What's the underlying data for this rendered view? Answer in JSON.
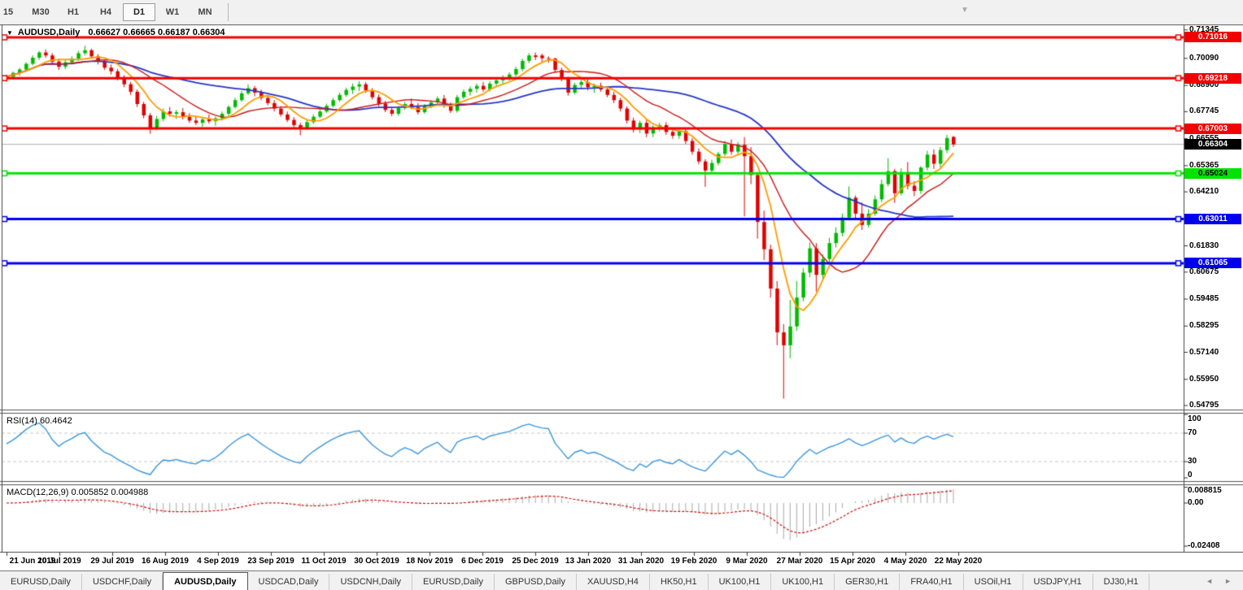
{
  "toolbar": {
    "periods": [
      "15",
      "M30",
      "H1",
      "H4",
      "D1",
      "W1",
      "MN"
    ],
    "active_period": "D1",
    "scroll_to_end_marker": "▼"
  },
  "chart_header": {
    "collapse_icon": "▼",
    "title": "AUDUSD,Daily",
    "ohlc": "0.66627 0.66665 0.66187 0.66304"
  },
  "rsi_panel": {
    "label": "RSI(14) 60.4642"
  },
  "macd_panel": {
    "label": "MACD(12,26,9) 0.005852 0.004988"
  },
  "tabs": {
    "active": "AUDUSD,Daily",
    "scroll_left": "◄",
    "scroll_right": "►",
    "items": [
      "EURUSD,Daily",
      "USDCHF,Daily",
      "AUDUSD,Daily",
      "USDCAD,Daily",
      "USDCNH,Daily",
      "EURUSD,Daily",
      "GBPUSD,Daily",
      "XAUUSD,H4",
      "HK50,H1",
      "UK100,H1",
      "UK100,H1",
      "GER30,H1",
      "FRA40,H1",
      "USOil,H1",
      "USDJPY,H1",
      "DJ30,H1"
    ]
  },
  "chart_data": {
    "type": "candlestick",
    "symbol": "AUDUSD",
    "timeframe": "Daily",
    "last_ohlc": {
      "open": 0.66627,
      "high": 0.66665,
      "low": 0.66187,
      "close": 0.66304
    },
    "current_price": {
      "value": 0.66304,
      "label": "0.66304",
      "line_color": "#b2b2b2",
      "tag_bg": "#000000",
      "tag_text": "#ffffff"
    },
    "ylim": [
      0.5465,
      0.7153
    ],
    "y_ticks": [
      "0.71345",
      "0.70090",
      "0.68900",
      "0.67745",
      "0.66555",
      "0.65365",
      "0.64210",
      "0.63020",
      "0.61830",
      "0.60675",
      "0.59485",
      "0.58295",
      "0.57140",
      "0.55950",
      "0.54795"
    ],
    "x_labels": [
      "21 Jun 2019",
      "10 Jul 2019",
      "29 Jul 2019",
      "16 Aug 2019",
      "4 Sep 2019",
      "23 Sep 2019",
      "11 Oct 2019",
      "30 Oct 2019",
      "18 Nov 2019",
      "6 Dec 2019",
      "25 Dec 2019",
      "13 Jan 2020",
      "31 Jan 2020",
      "19 Feb 2020",
      "9 Mar 2020",
      "27 Mar 2020",
      "15 Apr 2020",
      "4 May 2020",
      "22 May 2020"
    ],
    "grid": false,
    "colors": {
      "bull": "#00bb00",
      "bear": "#e00000",
      "background": "#ffffff",
      "axis_text": "#000000"
    },
    "horizontal_lines": [
      {
        "price": 0.71016,
        "label": "0.71016",
        "color": "#f40000",
        "tag_text": "#ffffff",
        "role": "resistance"
      },
      {
        "price": 0.69218,
        "label": "0.69218",
        "color": "#f40000",
        "tag_text": "#ffffff",
        "role": "resistance"
      },
      {
        "price": 0.67003,
        "label": "0.67003",
        "color": "#f40000",
        "tag_text": "#ffffff",
        "role": "resistance"
      },
      {
        "price": 0.65024,
        "label": "0.65024",
        "color": "#00e400",
        "tag_text": "#000000",
        "role": "support"
      },
      {
        "price": 0.63011,
        "label": "0.63011",
        "color": "#0000f0",
        "tag_text": "#ffffff",
        "role": "support"
      },
      {
        "price": 0.61065,
        "label": "0.61065",
        "color": "#0000f0",
        "tag_text": "#ffffff",
        "role": "support"
      }
    ],
    "moving_averages": [
      {
        "name": "fast",
        "color": "#ff9c00",
        "period_candles": 6,
        "width": 1.8
      },
      {
        "name": "medium",
        "color": "#cc1616",
        "period_candles": 14,
        "width": 1.4
      },
      {
        "name": "slow",
        "color": "#2336c8",
        "period_candles": 34,
        "width": 1.8
      }
    ],
    "indicators": [
      {
        "name": "RSI",
        "params": "14",
        "value": 60.4642,
        "range": [
          0,
          100
        ],
        "levels": [
          70,
          30
        ],
        "y_ticks": [
          "100",
          "70",
          "30",
          "0"
        ],
        "color": "#3a96dd",
        "period_candles": 9
      },
      {
        "name": "MACD",
        "params": "12,26,9",
        "value": 0.005852,
        "signal": 0.004988,
        "y_ticks": [
          "0.008815",
          "0.00",
          "-0.02408"
        ],
        "y_tick_values": [
          0.008815,
          0.0,
          -0.02408
        ],
        "histogram_color": "#a9a9a9",
        "signal_color": "#cc1111",
        "periods_candles": [
          8,
          16,
          6
        ]
      }
    ],
    "candles": [
      [
        0.6922,
        0.6938,
        0.6905,
        0.6928
      ],
      [
        0.6928,
        0.6952,
        0.6915,
        0.6945
      ],
      [
        0.6945,
        0.6968,
        0.6932,
        0.696
      ],
      [
        0.696,
        0.6992,
        0.695,
        0.6985
      ],
      [
        0.6985,
        0.7022,
        0.6978,
        0.7012
      ],
      [
        0.7012,
        0.7042,
        0.7002,
        0.7035
      ],
      [
        0.7035,
        0.7048,
        0.7012,
        0.7022
      ],
      [
        0.7022,
        0.7032,
        0.6985,
        0.6995
      ],
      [
        0.6995,
        0.7008,
        0.6958,
        0.6972
      ],
      [
        0.6972,
        0.7002,
        0.6962,
        0.6992
      ],
      [
        0.6992,
        0.7018,
        0.6982,
        0.7008
      ],
      [
        0.7008,
        0.7042,
        0.6998,
        0.7032
      ],
      [
        0.7032,
        0.7065,
        0.7022,
        0.7045
      ],
      [
        0.7045,
        0.7052,
        0.7008,
        0.7018
      ],
      [
        0.7018,
        0.7028,
        0.6982,
        0.6995
      ],
      [
        0.6995,
        0.7005,
        0.6958,
        0.6968
      ],
      [
        0.6968,
        0.6982,
        0.6938,
        0.6952
      ],
      [
        0.6952,
        0.6962,
        0.6912,
        0.6925
      ],
      [
        0.6925,
        0.6935,
        0.6882,
        0.6895
      ],
      [
        0.6895,
        0.6905,
        0.6848,
        0.6862
      ],
      [
        0.6862,
        0.6872,
        0.6795,
        0.6808
      ],
      [
        0.6808,
        0.6818,
        0.6745,
        0.6758
      ],
      [
        0.6758,
        0.6768,
        0.6677,
        0.6702
      ],
      [
        0.6702,
        0.6755,
        0.6692,
        0.6742
      ],
      [
        0.6742,
        0.6788,
        0.6732,
        0.6775
      ],
      [
        0.6775,
        0.6795,
        0.6752,
        0.6765
      ],
      [
        0.6765,
        0.6782,
        0.6742,
        0.6772
      ],
      [
        0.6772,
        0.679,
        0.674,
        0.6752
      ],
      [
        0.6752,
        0.6768,
        0.6725,
        0.6735
      ],
      [
        0.6735,
        0.6755,
        0.6715,
        0.6725
      ],
      [
        0.6725,
        0.6748,
        0.6708,
        0.674
      ],
      [
        0.674,
        0.6762,
        0.6722,
        0.6732
      ],
      [
        0.6732,
        0.6752,
        0.6712,
        0.6745
      ],
      [
        0.6745,
        0.6775,
        0.6735,
        0.6765
      ],
      [
        0.6765,
        0.6802,
        0.6755,
        0.6795
      ],
      [
        0.6795,
        0.6835,
        0.6788,
        0.6825
      ],
      [
        0.6825,
        0.6865,
        0.6818,
        0.6855
      ],
      [
        0.6855,
        0.6895,
        0.6848,
        0.6878
      ],
      [
        0.6878,
        0.6888,
        0.6842,
        0.6858
      ],
      [
        0.6858,
        0.6872,
        0.6825,
        0.6835
      ],
      [
        0.6835,
        0.6848,
        0.6802,
        0.6812
      ],
      [
        0.6812,
        0.6825,
        0.6775,
        0.6788
      ],
      [
        0.6788,
        0.6798,
        0.6752,
        0.6762
      ],
      [
        0.6762,
        0.6775,
        0.6728,
        0.6738
      ],
      [
        0.6738,
        0.675,
        0.6705,
        0.6715
      ],
      [
        0.6715,
        0.6725,
        0.667,
        0.6702
      ],
      [
        0.6702,
        0.6738,
        0.6695,
        0.6728
      ],
      [
        0.6728,
        0.6762,
        0.672,
        0.6752
      ],
      [
        0.6752,
        0.6785,
        0.6745,
        0.6775
      ],
      [
        0.6775,
        0.681,
        0.6768,
        0.68
      ],
      [
        0.68,
        0.6835,
        0.6792,
        0.6825
      ],
      [
        0.6825,
        0.6858,
        0.6818,
        0.6848
      ],
      [
        0.6848,
        0.688,
        0.684,
        0.687
      ],
      [
        0.687,
        0.6898,
        0.6852,
        0.6885
      ],
      [
        0.6885,
        0.6908,
        0.6865,
        0.6895
      ],
      [
        0.6895,
        0.6905,
        0.6858,
        0.6868
      ],
      [
        0.6868,
        0.6878,
        0.6828,
        0.6838
      ],
      [
        0.6838,
        0.685,
        0.6798,
        0.681
      ],
      [
        0.681,
        0.6822,
        0.6772,
        0.6782
      ],
      [
        0.6782,
        0.6792,
        0.6754,
        0.6765
      ],
      [
        0.6765,
        0.6798,
        0.6756,
        0.679
      ],
      [
        0.679,
        0.6818,
        0.6782,
        0.6808
      ],
      [
        0.6808,
        0.6832,
        0.6785,
        0.6795
      ],
      [
        0.6795,
        0.6812,
        0.6762,
        0.6772
      ],
      [
        0.6772,
        0.6808,
        0.6765,
        0.6798
      ],
      [
        0.6798,
        0.6825,
        0.6788,
        0.6815
      ],
      [
        0.6815,
        0.6842,
        0.6805,
        0.6832
      ],
      [
        0.6832,
        0.6848,
        0.6792,
        0.6802
      ],
      [
        0.6802,
        0.6815,
        0.6768,
        0.6778
      ],
      [
        0.6778,
        0.6848,
        0.677,
        0.6838
      ],
      [
        0.6838,
        0.6872,
        0.683,
        0.6862
      ],
      [
        0.6862,
        0.6885,
        0.6845,
        0.6875
      ],
      [
        0.6875,
        0.6898,
        0.6858,
        0.6888
      ],
      [
        0.6888,
        0.6905,
        0.6862,
        0.6872
      ],
      [
        0.6872,
        0.6908,
        0.6862,
        0.6898
      ],
      [
        0.6898,
        0.6922,
        0.6885,
        0.6912
      ],
      [
        0.6912,
        0.6935,
        0.6898,
        0.6925
      ],
      [
        0.6925,
        0.6948,
        0.691,
        0.6938
      ],
      [
        0.6938,
        0.6972,
        0.6928,
        0.6962
      ],
      [
        0.6962,
        0.7008,
        0.6952,
        0.6998
      ],
      [
        0.6998,
        0.7032,
        0.6988,
        0.7022
      ],
      [
        0.7022,
        0.7035,
        0.7002,
        0.7015
      ],
      [
        0.7022,
        0.703,
        0.6995,
        0.701
      ],
      [
        0.701,
        0.7018,
        0.699,
        0.7008
      ],
      [
        0.7008,
        0.7012,
        0.6948,
        0.6958
      ],
      [
        0.6958,
        0.6968,
        0.6908,
        0.6918
      ],
      [
        0.6918,
        0.6928,
        0.6845,
        0.6858
      ],
      [
        0.6858,
        0.6902,
        0.685,
        0.6892
      ],
      [
        0.6892,
        0.6915,
        0.6875,
        0.6905
      ],
      [
        0.6905,
        0.692,
        0.6868,
        0.6882
      ],
      [
        0.6882,
        0.6898,
        0.6858,
        0.6888
      ],
      [
        0.6888,
        0.6902,
        0.6862,
        0.6872
      ],
      [
        0.6872,
        0.6885,
        0.6838,
        0.6848
      ],
      [
        0.6848,
        0.6862,
        0.6812,
        0.6825
      ],
      [
        0.6825,
        0.6835,
        0.6775,
        0.6788
      ],
      [
        0.6788,
        0.6798,
        0.6722,
        0.6735
      ],
      [
        0.6735,
        0.6748,
        0.6682,
        0.6695
      ],
      [
        0.6695,
        0.6735,
        0.668,
        0.6725
      ],
      [
        0.6725,
        0.6742,
        0.6662,
        0.6678
      ],
      [
        0.6678,
        0.6715,
        0.6662,
        0.6705
      ],
      [
        0.6705,
        0.6725,
        0.6688,
        0.6715
      ],
      [
        0.6715,
        0.6728,
        0.6672,
        0.6685
      ],
      [
        0.6685,
        0.6698,
        0.6655,
        0.6668
      ],
      [
        0.6668,
        0.6695,
        0.6655,
        0.6688
      ],
      [
        0.6688,
        0.6698,
        0.6632,
        0.6645
      ],
      [
        0.6645,
        0.6658,
        0.6585,
        0.6598
      ],
      [
        0.6598,
        0.6612,
        0.6542,
        0.6555
      ],
      [
        0.6555,
        0.6565,
        0.6443,
        0.6515
      ],
      [
        0.6515,
        0.6562,
        0.6505,
        0.6548
      ],
      [
        0.6548,
        0.6598,
        0.6538,
        0.6588
      ],
      [
        0.6588,
        0.6645,
        0.6578,
        0.6632
      ],
      [
        0.6632,
        0.6652,
        0.6585,
        0.6598
      ],
      [
        0.6598,
        0.664,
        0.6588,
        0.6628
      ],
      [
        0.6628,
        0.6662,
        0.6313,
        0.6578
      ],
      [
        0.6578,
        0.6618,
        0.6455,
        0.6495
      ],
      [
        0.6495,
        0.6505,
        0.6215,
        0.6288
      ],
      [
        0.6288,
        0.6338,
        0.612,
        0.6168
      ],
      [
        0.6168,
        0.6188,
        0.5955,
        0.5995
      ],
      [
        0.5995,
        0.6028,
        0.5745,
        0.5802
      ],
      [
        0.5802,
        0.5838,
        0.551,
        0.5745
      ],
      [
        0.5745,
        0.5945,
        0.5688,
        0.5828
      ],
      [
        0.5828,
        0.6028,
        0.5808,
        0.5955
      ],
      [
        0.5955,
        0.6085,
        0.5938,
        0.6065
      ],
      [
        0.6065,
        0.6198,
        0.6045,
        0.6172
      ],
      [
        0.6172,
        0.6195,
        0.5982,
        0.6055
      ],
      [
        0.6055,
        0.6145,
        0.6035,
        0.6125
      ],
      [
        0.6125,
        0.6218,
        0.6105,
        0.6195
      ],
      [
        0.6195,
        0.6265,
        0.6175,
        0.624
      ],
      [
        0.624,
        0.6325,
        0.6225,
        0.6308
      ],
      [
        0.6308,
        0.6445,
        0.6295,
        0.6395
      ],
      [
        0.6395,
        0.6405,
        0.6302,
        0.6325
      ],
      [
        0.6325,
        0.6375,
        0.6253,
        0.6275
      ],
      [
        0.6275,
        0.6345,
        0.6265,
        0.6325
      ],
      [
        0.6325,
        0.6405,
        0.6315,
        0.6388
      ],
      [
        0.6388,
        0.6475,
        0.6375,
        0.6455
      ],
      [
        0.6455,
        0.657,
        0.6445,
        0.6512
      ],
      [
        0.6512,
        0.6522,
        0.6372,
        0.6415
      ],
      [
        0.6415,
        0.6525,
        0.6405,
        0.6508
      ],
      [
        0.6508,
        0.6552,
        0.6432,
        0.6448
      ],
      [
        0.6448,
        0.6468,
        0.6402,
        0.6425
      ],
      [
        0.6425,
        0.6535,
        0.6412,
        0.6528
      ],
      [
        0.6528,
        0.6602,
        0.6515,
        0.6585
      ],
      [
        0.6585,
        0.6608,
        0.6522,
        0.6545
      ],
      [
        0.6545,
        0.6618,
        0.6528,
        0.6605
      ],
      [
        0.6605,
        0.6672,
        0.6592,
        0.6658
      ],
      [
        0.6663,
        0.6667,
        0.6619,
        0.663
      ]
    ]
  }
}
